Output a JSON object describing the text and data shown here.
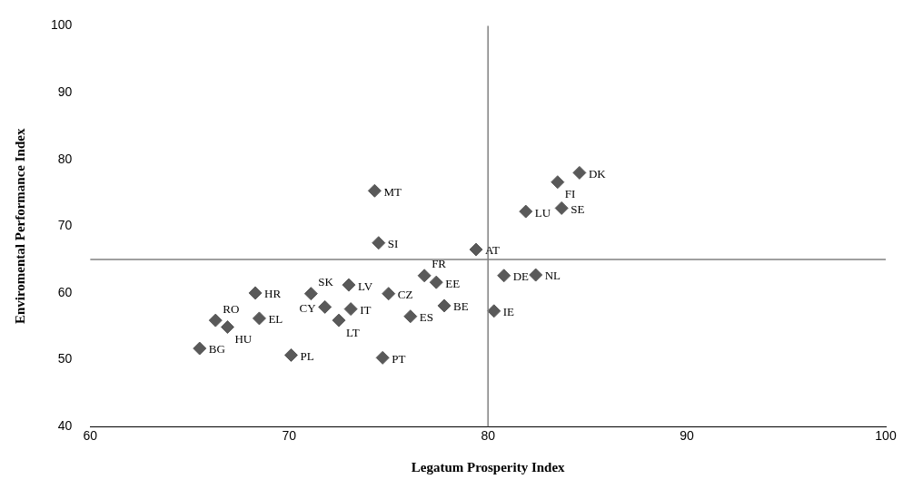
{
  "chart_data": {
    "type": "scatter",
    "xlabel": "Legatum Prosperity Index",
    "ylabel": "Enviromental Performance Index",
    "x": [
      65.5,
      66.3,
      66.9,
      68.3,
      68.5,
      70.1,
      71.1,
      71.8,
      73.0,
      73.1,
      72.5,
      74.3,
      74.5,
      74.7,
      75.0,
      76.1,
      76.8,
      77.4,
      77.8,
      79.4,
      80.3,
      80.8,
      82.4,
      81.9,
      83.5,
      83.7,
      84.6
    ],
    "series": [
      {
        "color": "#595959",
        "values": [
          51.7,
          55.9,
          54.9,
          60.0,
          56.2,
          50.7,
          59.9,
          57.9,
          61.2,
          57.6,
          55.9,
          75.3,
          67.5,
          50.3,
          59.9,
          56.5,
          62.6,
          61.6,
          58.1,
          66.5,
          57.3,
          62.6,
          62.7,
          72.2,
          76.6,
          72.7,
          78.0
        ]
      }
    ],
    "annotations": [
      {
        "text": "BG",
        "x": 65.5,
        "y": 51.7
      },
      {
        "text": "RO",
        "x": 66.3,
        "y": 55.9
      },
      {
        "text": "HU",
        "x": 66.9,
        "y": 54.9
      },
      {
        "text": "HR",
        "x": 68.3,
        "y": 60.0
      },
      {
        "text": "EL",
        "x": 68.5,
        "y": 56.2
      },
      {
        "text": "PL",
        "x": 70.1,
        "y": 50.7
      },
      {
        "text": "SK",
        "x": 71.1,
        "y": 59.9
      },
      {
        "text": "CY",
        "x": 71.8,
        "y": 57.9
      },
      {
        "text": "LV",
        "x": 73.0,
        "y": 61.2
      },
      {
        "text": "IT",
        "x": 73.1,
        "y": 57.6
      },
      {
        "text": "LT",
        "x": 72.5,
        "y": 55.9
      },
      {
        "text": "MT",
        "x": 74.3,
        "y": 75.3
      },
      {
        "text": "SI",
        "x": 74.5,
        "y": 67.5
      },
      {
        "text": "PT",
        "x": 74.7,
        "y": 50.3
      },
      {
        "text": "CZ",
        "x": 75.0,
        "y": 59.9
      },
      {
        "text": "ES",
        "x": 76.1,
        "y": 56.5
      },
      {
        "text": "FR",
        "x": 76.8,
        "y": 62.6
      },
      {
        "text": "EE",
        "x": 77.4,
        "y": 61.6
      },
      {
        "text": "BE",
        "x": 77.8,
        "y": 58.1
      },
      {
        "text": "AT",
        "x": 79.4,
        "y": 66.5
      },
      {
        "text": "IE",
        "x": 80.3,
        "y": 57.3
      },
      {
        "text": "DE",
        "x": 80.8,
        "y": 62.6
      },
      {
        "text": "NL",
        "x": 82.4,
        "y": 62.7
      },
      {
        "text": "LU",
        "x": 81.9,
        "y": 72.2
      },
      {
        "text": "FI",
        "x": 83.5,
        "y": 76.6
      },
      {
        "text": "SE",
        "x": 83.7,
        "y": 72.7
      },
      {
        "text": "DK",
        "x": 84.6,
        "y": 78.0
      }
    ],
    "xlim": [
      60,
      100
    ],
    "xticks": [
      60,
      70,
      80,
      90,
      100
    ],
    "ylim": [
      40,
      100
    ],
    "yticks": [
      40,
      50,
      60,
      70,
      80,
      90,
      100
    ],
    "ref_lines": [
      {
        "axis": "x",
        "value": 80,
        "color": "#808080"
      },
      {
        "axis": "y",
        "value": 65,
        "color": "#808080"
      }
    ],
    "grid": false,
    "legend": false,
    "marker": "diamond"
  }
}
